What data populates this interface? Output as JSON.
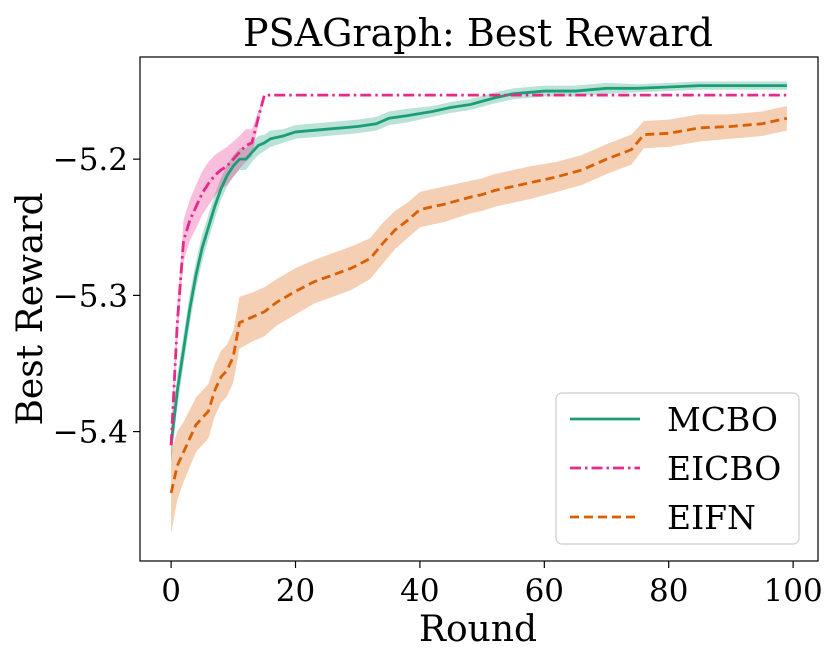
{
  "chart_data": {
    "type": "line",
    "title": "PSAGraph: Best Reward",
    "xlabel": "Round",
    "ylabel": "Best Reward",
    "xlim": [
      -5,
      104
    ],
    "ylim": [
      -5.495,
      -5.125
    ],
    "xticks": [
      0,
      20,
      40,
      60,
      80,
      100
    ],
    "xtick_labels": [
      "0",
      "20",
      "40",
      "60",
      "80",
      "100"
    ],
    "yticks": [
      -5.2,
      -5.3,
      -5.4
    ],
    "ytick_labels": [
      "−5.2",
      "−5.3",
      "−5.4"
    ],
    "grid": false,
    "legend_position": "lower-right",
    "series": [
      {
        "name": "MCBO",
        "color": "#1b9e77",
        "style": "solid",
        "points": [
          [
            0,
            -5.41
          ],
          [
            1,
            -5.37
          ],
          [
            2,
            -5.34
          ],
          [
            3,
            -5.31
          ],
          [
            4,
            -5.285
          ],
          [
            5,
            -5.265
          ],
          [
            6,
            -5.25
          ],
          [
            7,
            -5.235
          ],
          [
            8,
            -5.222
          ],
          [
            9,
            -5.212
          ],
          [
            10,
            -5.205
          ],
          [
            11,
            -5.2
          ],
          [
            12,
            -5.2
          ],
          [
            13,
            -5.195
          ],
          [
            14,
            -5.19
          ],
          [
            15,
            -5.188
          ],
          [
            16,
            -5.185
          ],
          [
            18,
            -5.183
          ],
          [
            20,
            -5.18
          ],
          [
            25,
            -5.178
          ],
          [
            30,
            -5.176
          ],
          [
            33,
            -5.174
          ],
          [
            35,
            -5.17
          ],
          [
            38,
            -5.168
          ],
          [
            42,
            -5.165
          ],
          [
            45,
            -5.162
          ],
          [
            48,
            -5.16
          ],
          [
            52,
            -5.155
          ],
          [
            55,
            -5.152
          ],
          [
            60,
            -5.15
          ],
          [
            65,
            -5.15
          ],
          [
            70,
            -5.148
          ],
          [
            75,
            -5.148
          ],
          [
            80,
            -5.147
          ],
          [
            85,
            -5.146
          ],
          [
            90,
            -5.146
          ],
          [
            95,
            -5.146
          ],
          [
            99,
            -5.146
          ]
        ],
        "band": [
          0.012,
          0.012,
          0.011,
          0.011,
          0.01,
          0.01,
          0.009,
          0.009,
          0.008,
          0.008,
          0.008,
          0.008,
          0.008,
          0.007,
          0.007,
          0.006,
          0.006,
          0.005,
          0.005,
          0.005,
          0.005,
          0.005,
          0.005,
          0.005,
          0.004,
          0.004,
          0.004,
          0.004,
          0.004,
          0.004,
          0.004,
          0.004,
          0.003,
          0.003,
          0.003,
          0.003,
          0.003,
          0.003
        ]
      },
      {
        "name": "EICBO",
        "color": "#e7298a",
        "style": "dashdot",
        "points": [
          [
            0,
            -5.41
          ],
          [
            1,
            -5.32
          ],
          [
            2,
            -5.26
          ],
          [
            3,
            -5.245
          ],
          [
            4,
            -5.235
          ],
          [
            5,
            -5.225
          ],
          [
            6,
            -5.218
          ],
          [
            7,
            -5.212
          ],
          [
            8,
            -5.208
          ],
          [
            9,
            -5.205
          ],
          [
            10,
            -5.2
          ],
          [
            11,
            -5.195
          ],
          [
            12,
            -5.19
          ],
          [
            13,
            -5.188
          ],
          [
            14,
            -5.17
          ],
          [
            15,
            -5.153
          ],
          [
            20,
            -5.153
          ],
          [
            40,
            -5.153
          ],
          [
            60,
            -5.153
          ],
          [
            80,
            -5.153
          ],
          [
            99,
            -5.153
          ]
        ],
        "band": [
          0.012,
          0.012,
          0.015,
          0.015,
          0.016,
          0.016,
          0.016,
          0.015,
          0.014,
          0.014,
          0.013,
          0.012,
          0.012,
          0.01,
          0.005,
          0.0,
          0.0,
          0.0,
          0.0,
          0.0,
          0.0
        ]
      },
      {
        "name": "EIFN",
        "color": "#d95f02",
        "style": "dashed",
        "points": [
          [
            0,
            -5.445
          ],
          [
            1,
            -5.425
          ],
          [
            2,
            -5.415
          ],
          [
            3,
            -5.405
          ],
          [
            4,
            -5.395
          ],
          [
            5,
            -5.39
          ],
          [
            6,
            -5.385
          ],
          [
            7,
            -5.37
          ],
          [
            8,
            -5.36
          ],
          [
            9,
            -5.355
          ],
          [
            10,
            -5.345
          ],
          [
            11,
            -5.32
          ],
          [
            13,
            -5.316
          ],
          [
            15,
            -5.312
          ],
          [
            17,
            -5.305
          ],
          [
            20,
            -5.297
          ],
          [
            23,
            -5.29
          ],
          [
            26,
            -5.285
          ],
          [
            29,
            -5.28
          ],
          [
            32,
            -5.273
          ],
          [
            34,
            -5.262
          ],
          [
            36,
            -5.252
          ],
          [
            38,
            -5.245
          ],
          [
            40,
            -5.237
          ],
          [
            44,
            -5.233
          ],
          [
            48,
            -5.228
          ],
          [
            50,
            -5.226
          ],
          [
            52,
            -5.223
          ],
          [
            55,
            -5.22
          ],
          [
            58,
            -5.217
          ],
          [
            62,
            -5.213
          ],
          [
            66,
            -5.208
          ],
          [
            70,
            -5.2
          ],
          [
            74,
            -5.193
          ],
          [
            76,
            -5.182
          ],
          [
            80,
            -5.181
          ],
          [
            85,
            -5.177
          ],
          [
            90,
            -5.176
          ],
          [
            95,
            -5.174
          ],
          [
            99,
            -5.17
          ]
        ],
        "band": [
          0.03,
          0.025,
          0.022,
          0.021,
          0.02,
          0.02,
          0.02,
          0.019,
          0.019,
          0.019,
          0.019,
          0.019,
          0.018,
          0.018,
          0.017,
          0.017,
          0.016,
          0.016,
          0.016,
          0.015,
          0.015,
          0.014,
          0.013,
          0.013,
          0.013,
          0.012,
          0.012,
          0.012,
          0.012,
          0.012,
          0.011,
          0.011,
          0.011,
          0.011,
          0.01,
          0.01,
          0.01,
          0.009,
          0.009,
          0.009
        ]
      }
    ]
  }
}
